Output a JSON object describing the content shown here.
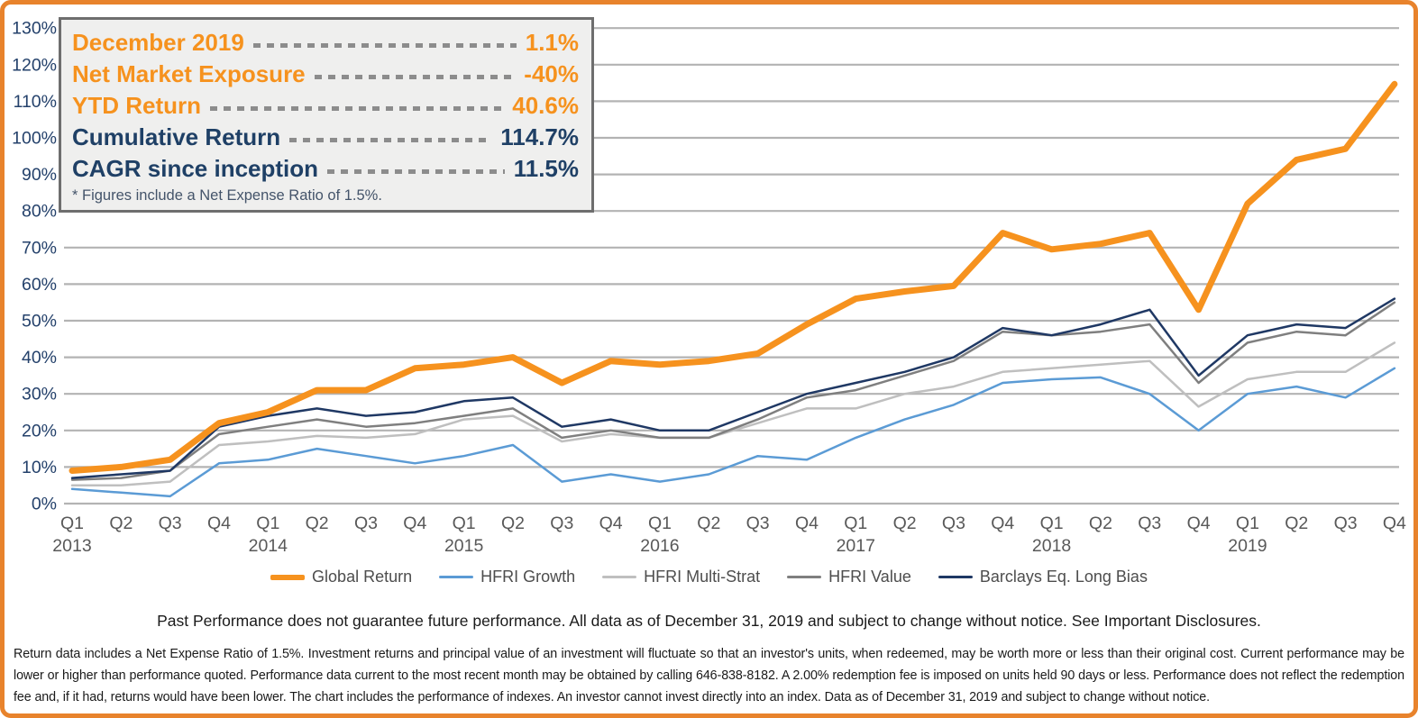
{
  "stats_box": {
    "rows": [
      {
        "label": "December 2019",
        "value": "1.1%"
      },
      {
        "label": "Net Market Exposure",
        "value": "-40%"
      },
      {
        "label": "YTD Return",
        "value": "40.6%"
      },
      {
        "label": "Cumulative Return",
        "value": "114.7%"
      },
      {
        "label": "CAGR since inception",
        "value": "11.5%"
      }
    ],
    "footnote": "* Figures include a Net Expense Ratio of 1.5%."
  },
  "chart_data": {
    "type": "line",
    "title": "",
    "xlabel": "",
    "ylabel": "",
    "ylim": [
      0,
      130
    ],
    "grid": true,
    "legend_position": "bottom",
    "y_ticks": [
      "0%",
      "10%",
      "20%",
      "30%",
      "40%",
      "50%",
      "60%",
      "70%",
      "80%",
      "90%",
      "100%",
      "110%",
      "120%",
      "130%"
    ],
    "x_quarters": [
      "Q1",
      "Q2",
      "Q3",
      "Q4",
      "Q1",
      "Q2",
      "Q3",
      "Q4",
      "Q1",
      "Q2",
      "Q3",
      "Q4",
      "Q1",
      "Q2",
      "Q3",
      "Q4",
      "Q1",
      "Q2",
      "Q3",
      "Q4",
      "Q1",
      "Q2",
      "Q3",
      "Q4",
      "Q1",
      "Q2",
      "Q3",
      "Q4"
    ],
    "x_year_positions": [
      {
        "quarter_index": 0,
        "label": "2013"
      },
      {
        "quarter_index": 4,
        "label": "2014"
      },
      {
        "quarter_index": 8,
        "label": "2015"
      },
      {
        "quarter_index": 12,
        "label": "2016"
      },
      {
        "quarter_index": 16,
        "label": "2017"
      },
      {
        "quarter_index": 20,
        "label": "2018"
      },
      {
        "quarter_index": 24,
        "label": "2019"
      }
    ],
    "series": [
      {
        "name": "Global Return",
        "color": "#F6921E",
        "width": 7,
        "values": [
          9,
          10,
          12,
          22,
          25,
          31,
          31,
          37,
          38,
          40,
          33,
          39,
          38,
          39,
          41,
          49,
          56,
          58,
          59.5,
          74,
          69.5,
          71,
          74,
          53,
          82,
          94,
          97,
          114.7
        ]
      },
      {
        "name": "HFRI Growth",
        "color": "#5B9BD5",
        "width": 2.5,
        "values": [
          4,
          3,
          2,
          11,
          12,
          15,
          13,
          11,
          13,
          16,
          6,
          8,
          6,
          8,
          13,
          12,
          18,
          23,
          27,
          33,
          34,
          34.5,
          30,
          20,
          30,
          32,
          29,
          37
        ]
      },
      {
        "name": "HFRI Multi-Strat",
        "color": "#BFBFBF",
        "width": 2.5,
        "values": [
          5,
          5,
          6,
          16,
          17,
          18.5,
          18,
          19,
          23,
          24,
          17,
          19,
          18,
          18,
          22,
          26,
          26,
          30,
          32,
          36,
          37,
          38,
          39,
          26.5,
          34,
          36,
          36,
          44
        ]
      },
      {
        "name": "HFRI Value",
        "color": "#7F7F7F",
        "width": 2.5,
        "values": [
          6.5,
          7,
          9,
          19,
          21,
          23,
          21,
          22,
          24,
          26,
          18,
          20,
          18,
          18,
          23,
          29,
          31,
          35,
          39,
          47,
          46,
          47,
          49,
          33,
          44,
          47,
          46,
          55
        ]
      },
      {
        "name": "Barclays Eq. Long Bias",
        "color": "#1F3864",
        "width": 2.5,
        "values": [
          7,
          8,
          9,
          21,
          24,
          26,
          24,
          25,
          28,
          29,
          21,
          23,
          20,
          20,
          25,
          30,
          33,
          36,
          40,
          48,
          46,
          49,
          53,
          35,
          46,
          49,
          48,
          56
        ]
      }
    ],
    "style": {
      "gridline_color": "#B3B3B3",
      "y_label_color": "#24416B",
      "x_label_color": "#595959"
    }
  },
  "footer": {
    "performance_note": "Past Performance does not guarantee future performance. All data as of December 31, 2019 and subject to change without notice. See Important Disclosures.",
    "fine_print": "Return data includes a Net Expense Ratio of 1.5%. Investment returns and principal value of an investment will fluctuate so that an investor's units, when redeemed, may be worth more or less than their original cost. Current performance may be lower or higher than performance quoted. Performance data current to the most recent month may be obtained by calling 646-838-8182. A 2.00% redemption fee is imposed on units held 90 days or less. Performance does not reflect the redemption fee and, if it had, returns would have been lower. The chart includes the performance of indexes. An investor cannot invest directly into an index. Data as of December 31, 2019 and subject to change without notice."
  }
}
